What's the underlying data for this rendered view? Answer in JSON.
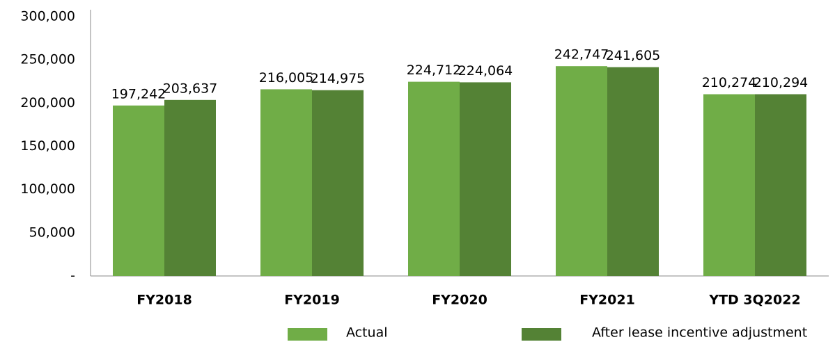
{
  "chart_data": {
    "type": "bar",
    "categories": [
      "FY2018",
      "FY2019",
      "FY2020",
      "FY2021",
      "YTD 3Q2022"
    ],
    "series": [
      {
        "name": "Actual",
        "color": "#70ad47",
        "values": [
          197242,
          216005,
          224712,
          242747,
          210274
        ],
        "value_labels": [
          "197,242",
          "216,005",
          "224,712",
          "242,747",
          "210,274"
        ]
      },
      {
        "name": "After lease incentive adjustment",
        "color": "#548235",
        "values": [
          203637,
          214975,
          224064,
          241605,
          210294
        ],
        "value_labels": [
          "203,637",
          "214,975",
          "224,064",
          "241,605",
          "210,294"
        ]
      }
    ],
    "ylim": [
      0,
      300000
    ],
    "yticks": [
      {
        "value": 0,
        "label": "-"
      },
      {
        "value": 50000,
        "label": "50,000"
      },
      {
        "value": 100000,
        "label": "100,000"
      },
      {
        "value": 150000,
        "label": "150,000"
      },
      {
        "value": 200000,
        "label": "200,000"
      },
      {
        "value": 250000,
        "label": "250,000"
      },
      {
        "value": 300000,
        "label": "300,000"
      }
    ],
    "grid": false,
    "legend": "bottom"
  }
}
